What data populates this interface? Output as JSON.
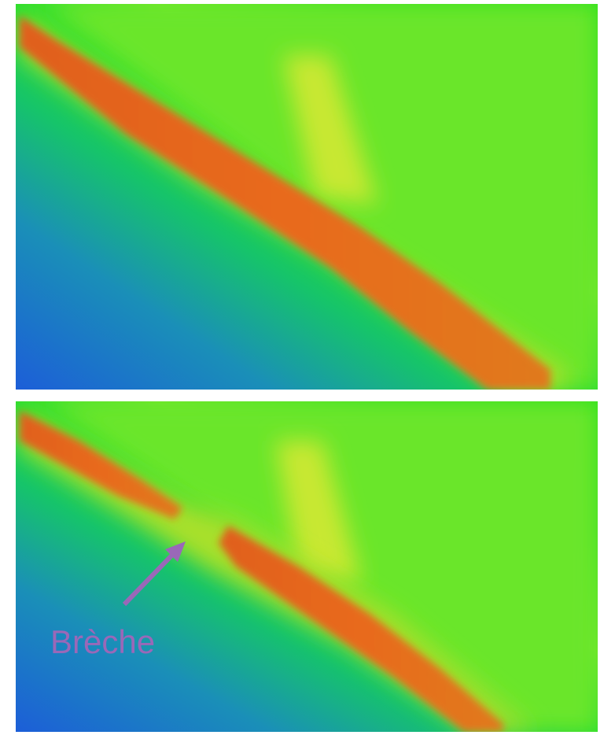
{
  "annotation": {
    "label": "Brèche"
  }
}
